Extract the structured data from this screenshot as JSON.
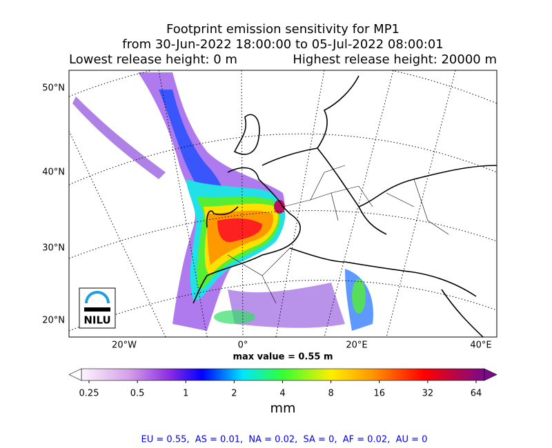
{
  "title": {
    "line1": "Footprint emission sensitivity for MP1",
    "line2": "from 30-Jun-2022 18:00:00 to 05-Jul-2022 08:00:01",
    "line3_left": "Lowest release height: 0 m",
    "line3_right": "Highest release height: 20000 m"
  },
  "map": {
    "lat_labels": [
      "50°N",
      "40°N",
      "30°N",
      "20°N"
    ],
    "lon_labels": [
      "20°W",
      "0°",
      "20°E",
      "40°E"
    ],
    "logo": "NILU",
    "max_value": "max value = 0.55 m"
  },
  "colorbar": {
    "ticks": [
      "0.25",
      "0.5",
      "1",
      "2",
      "4",
      "8",
      "16",
      "32",
      "64"
    ],
    "unit": "mm"
  },
  "footer": "EU = 0.55,  AS = 0.01,  NA = 0.02,  SA = 0,  AF = 0.02,  AU = 0"
}
